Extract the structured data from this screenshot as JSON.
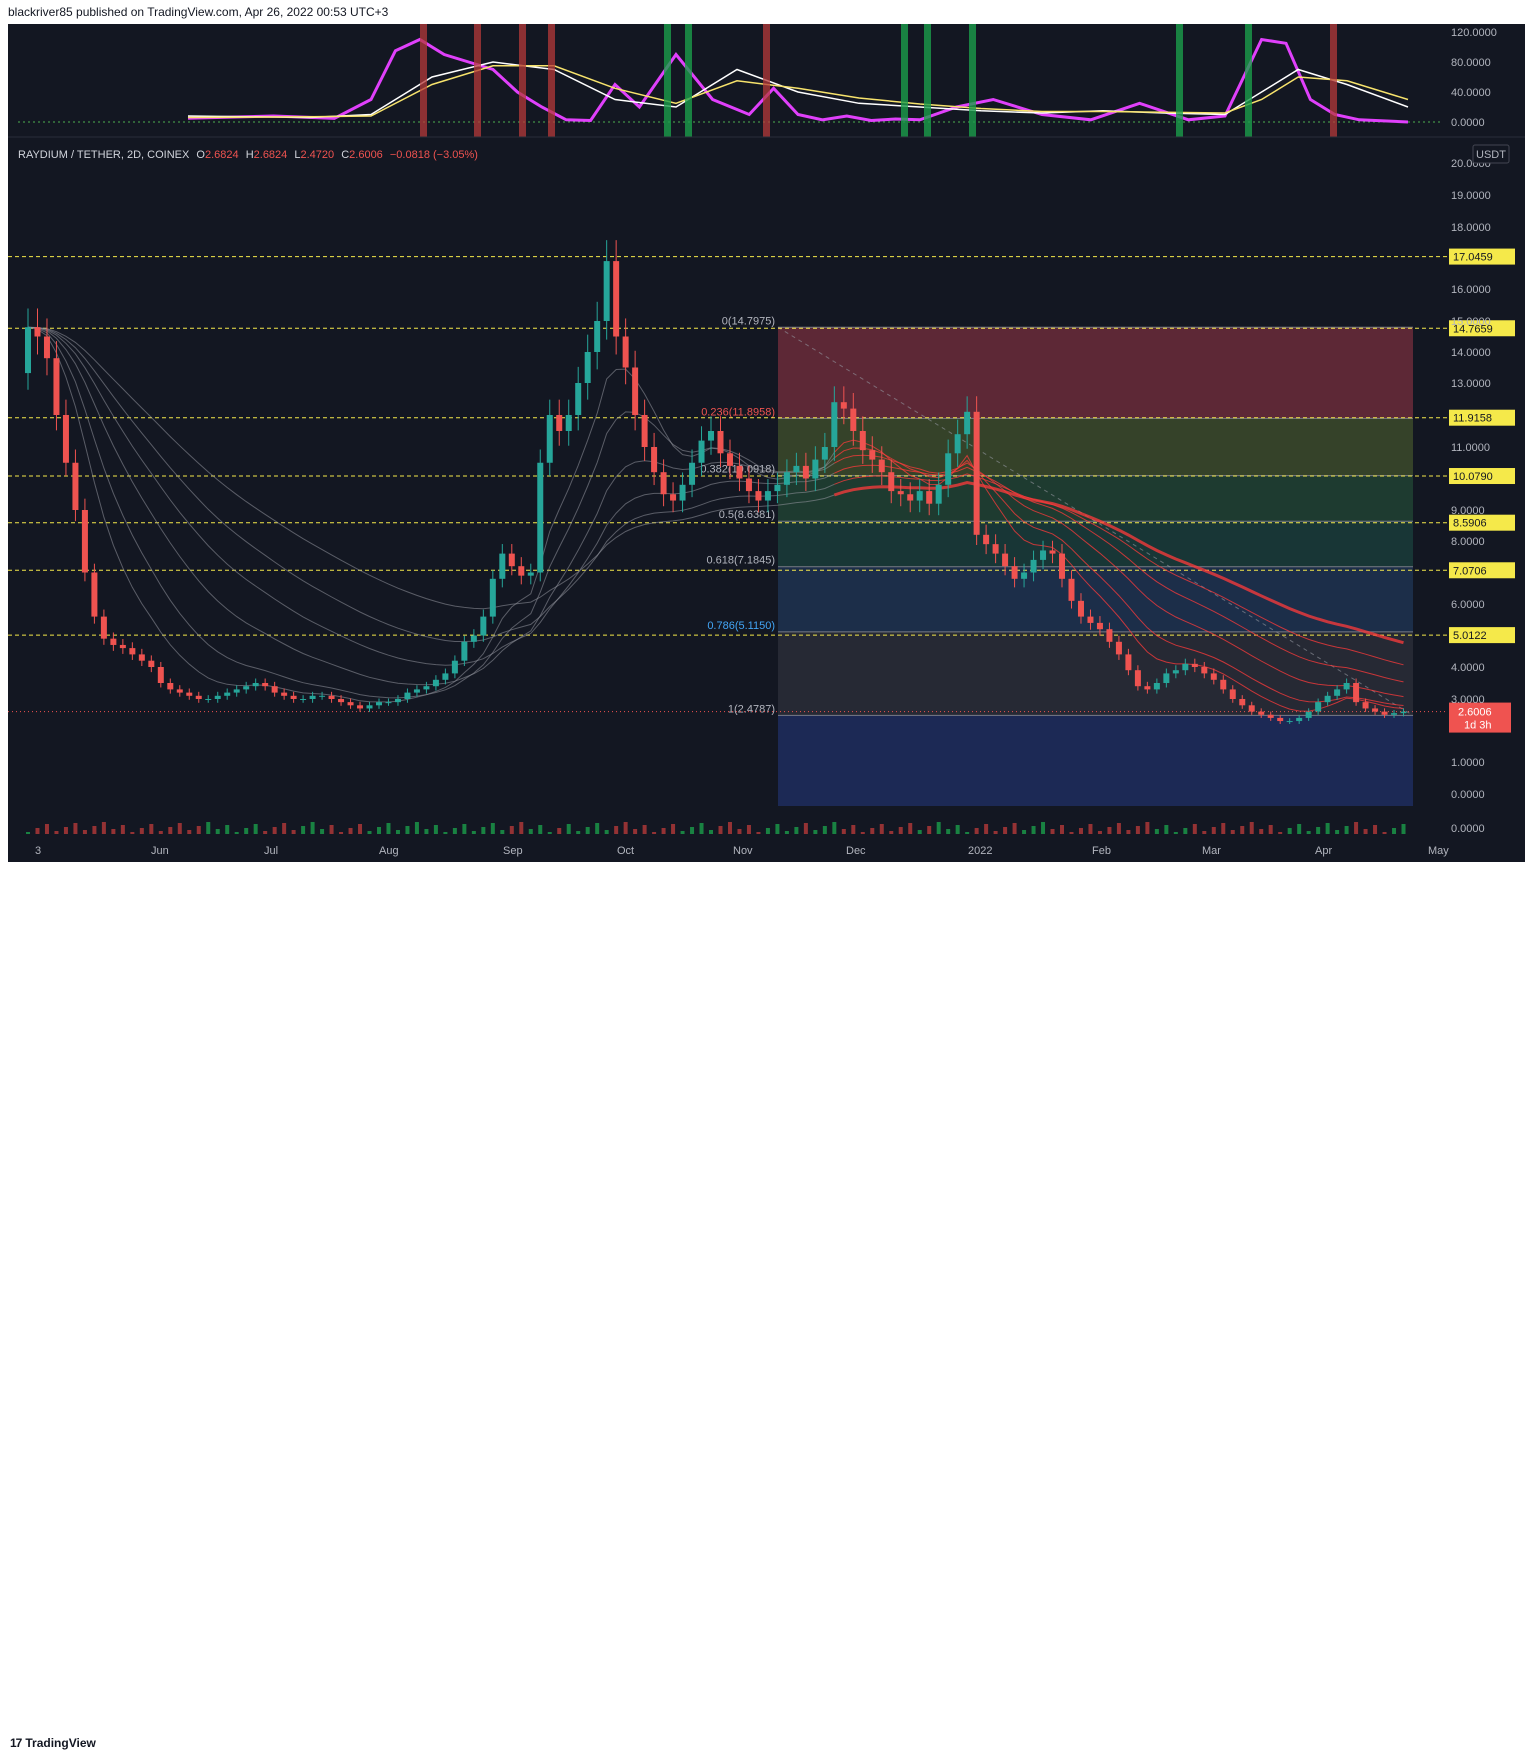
{
  "header": {
    "publisher": "blackriver85 published on TradingView.com, Apr 26, 2022 00:53 UTC+3"
  },
  "footer": {
    "brand": "TradingView",
    "logo_mark": "17"
  },
  "legend": {
    "symbol": "RAYDIUM / TETHER, 2D, COINEX",
    "o_label": "O",
    "o_value": "2.6824",
    "h_label": "H",
    "h_value": "2.6824",
    "l_label": "L",
    "l_value": "2.4720",
    "c_label": "C",
    "c_value": "2.6006",
    "change": "−0.0818 (−3.05%)"
  },
  "currency_badge": "USDT",
  "price_tag": {
    "value": "2.6006",
    "countdown": "1d 3h"
  },
  "colors": {
    "background": "#131722",
    "up": "#26a69a",
    "down": "#ef5350",
    "level_line": "#f5e94a",
    "magenta": "#e040fb",
    "white_line": "#ffffff",
    "yellow_line": "#f7e36c"
  },
  "chart_data": [
    {
      "type": "line",
      "title": "",
      "oscillator": true,
      "ylim": [
        0,
        120
      ],
      "y_ticks": [
        "120.0000",
        "80.0000",
        "40.0000",
        "0.0000"
      ],
      "y_tick_values": [
        120,
        80,
        40,
        0
      ],
      "note_values": "estimated from axis ticks",
      "series": [
        {
          "color": "magenta",
          "x": [
            0.0,
            0.07,
            0.12,
            0.15,
            0.17,
            0.19,
            0.21,
            0.23,
            0.25,
            0.27,
            0.29,
            0.31,
            0.33,
            0.35,
            0.37,
            0.4,
            0.43,
            0.46,
            0.48,
            0.5,
            0.52,
            0.54,
            0.56,
            0.58,
            0.6,
            0.63,
            0.66,
            0.7,
            0.74,
            0.78,
            0.82,
            0.85,
            0.88,
            0.9,
            0.92,
            0.94,
            0.96,
            1.0
          ],
          "values": [
            5,
            8,
            5,
            30,
            95,
            110,
            90,
            80,
            70,
            40,
            20,
            3,
            2,
            50,
            20,
            90,
            30,
            10,
            45,
            10,
            3,
            8,
            2,
            4,
            3,
            20,
            30,
            10,
            3,
            25,
            3,
            8,
            110,
            105,
            30,
            10,
            3,
            0
          ]
        },
        {
          "color": "white_line",
          "x": [
            0.0,
            0.1,
            0.15,
            0.2,
            0.25,
            0.3,
            0.35,
            0.4,
            0.45,
            0.5,
            0.55,
            0.6,
            0.65,
            0.7,
            0.75,
            0.8,
            0.85,
            0.88,
            0.91,
            0.95,
            1.0
          ],
          "values": [
            8,
            6,
            10,
            60,
            80,
            70,
            30,
            20,
            70,
            40,
            25,
            20,
            15,
            12,
            15,
            12,
            10,
            40,
            70,
            50,
            20
          ]
        },
        {
          "color": "yellow_line",
          "x": [
            0.0,
            0.1,
            0.15,
            0.2,
            0.25,
            0.3,
            0.35,
            0.4,
            0.45,
            0.5,
            0.55,
            0.6,
            0.65,
            0.7,
            0.75,
            0.8,
            0.85,
            0.88,
            0.91,
            0.95,
            1.0
          ],
          "values": [
            6,
            7,
            8,
            50,
            75,
            75,
            45,
            25,
            55,
            45,
            32,
            24,
            18,
            14,
            14,
            13,
            12,
            30,
            60,
            55,
            30
          ]
        }
      ]
    },
    {
      "type": "candlestick",
      "title": "RAYDIUM / TETHER, 2D, COINEX",
      "note_values": "estimated from axis ticks",
      "ylim": [
        0,
        20
      ],
      "y_ticks": [
        "20.0000",
        "19.0000",
        "18.0000",
        "16.0000",
        "15.0000",
        "14.0000",
        "13.0000",
        "11.0000",
        "9.0000",
        "8.0000",
        "6.0000",
        "4.0000",
        "3.0000",
        "1.0000",
        "0.0000"
      ],
      "y_tick_values": [
        20,
        19,
        18,
        16,
        15,
        14,
        13,
        11,
        9,
        8,
        6,
        4,
        3,
        1,
        0
      ],
      "x_ticks": [
        "3",
        "Jun",
        "Jul",
        "Aug",
        "Sep",
        "Oct",
        "Nov",
        "Dec",
        "2022",
        "Feb",
        "Mar",
        "Apr",
        "May"
      ],
      "horizontal_levels": [
        "17.0459",
        "14.7659",
        "11.9158",
        "10.0790",
        "8.5906",
        "7.0706",
        "5.0122"
      ],
      "horizontal_level_values": [
        17.0459,
        14.7659,
        11.9158,
        10.079,
        8.5906,
        7.0706,
        5.0122
      ],
      "fibonacci": [
        {
          "label": "0(14.7975)",
          "value": 14.7975
        },
        {
          "label": "0.236(11.8958)",
          "value": 11.8958
        },
        {
          "label": "0.382(10.0918)",
          "value": 10.0918
        },
        {
          "label": "0.5(8.6381)",
          "value": 8.6381
        },
        {
          "label": "0.618(7.1845)",
          "value": 7.1845
        },
        {
          "label": "0.786(5.1150)",
          "value": 5.115
        },
        {
          "label": "1(2.4787)",
          "value": 2.4787
        }
      ],
      "last_price": 2.6006,
      "closes": [
        14.8,
        14.5,
        13.8,
        12.0,
        10.5,
        9.0,
        7.0,
        5.6,
        4.9,
        4.7,
        4.6,
        4.4,
        4.2,
        4.0,
        3.5,
        3.3,
        3.2,
        3.1,
        3.0,
        3.0,
        3.1,
        3.2,
        3.3,
        3.4,
        3.5,
        3.4,
        3.2,
        3.1,
        3.0,
        3.0,
        3.1,
        3.1,
        3.0,
        2.9,
        2.8,
        2.7,
        2.8,
        2.9,
        2.9,
        3.0,
        3.2,
        3.3,
        3.4,
        3.6,
        3.8,
        4.2,
        4.8,
        5.0,
        5.6,
        6.8,
        7.6,
        7.2,
        6.9,
        7.0,
        10.5,
        12.0,
        11.5,
        12.0,
        13.0,
        14.0,
        15.0,
        16.9,
        14.5,
        13.5,
        12.0,
        11.0,
        10.2,
        9.5,
        9.3,
        9.8,
        10.5,
        11.2,
        11.5,
        10.8,
        10.4,
        10.0,
        9.6,
        9.3,
        9.6,
        9.8,
        10.2,
        10.4,
        10.0,
        10.6,
        11.0,
        12.4,
        12.2,
        11.5,
        10.9,
        10.6,
        10.2,
        9.6,
        9.5,
        9.3,
        9.6,
        9.2,
        9.8,
        10.8,
        11.4,
        12.1,
        8.2,
        7.9,
        7.6,
        7.2,
        6.8,
        7.0,
        7.4,
        7.7,
        7.6,
        6.8,
        6.1,
        5.6,
        5.4,
        5.2,
        4.8,
        4.4,
        3.9,
        3.4,
        3.3,
        3.5,
        3.8,
        3.9,
        4.1,
        4.0,
        3.8,
        3.6,
        3.3,
        3.0,
        2.8,
        2.6,
        2.5,
        2.4,
        2.3,
        2.3,
        2.4,
        2.6,
        2.9,
        3.1,
        3.3,
        3.5,
        2.9,
        2.7,
        2.6,
        2.5,
        2.55,
        2.6
      ]
    },
    {
      "type": "bar",
      "title": "",
      "volume": true,
      "y_ticks": [
        "0.0000"
      ],
      "y_tick_values": [
        0
      ]
    }
  ]
}
